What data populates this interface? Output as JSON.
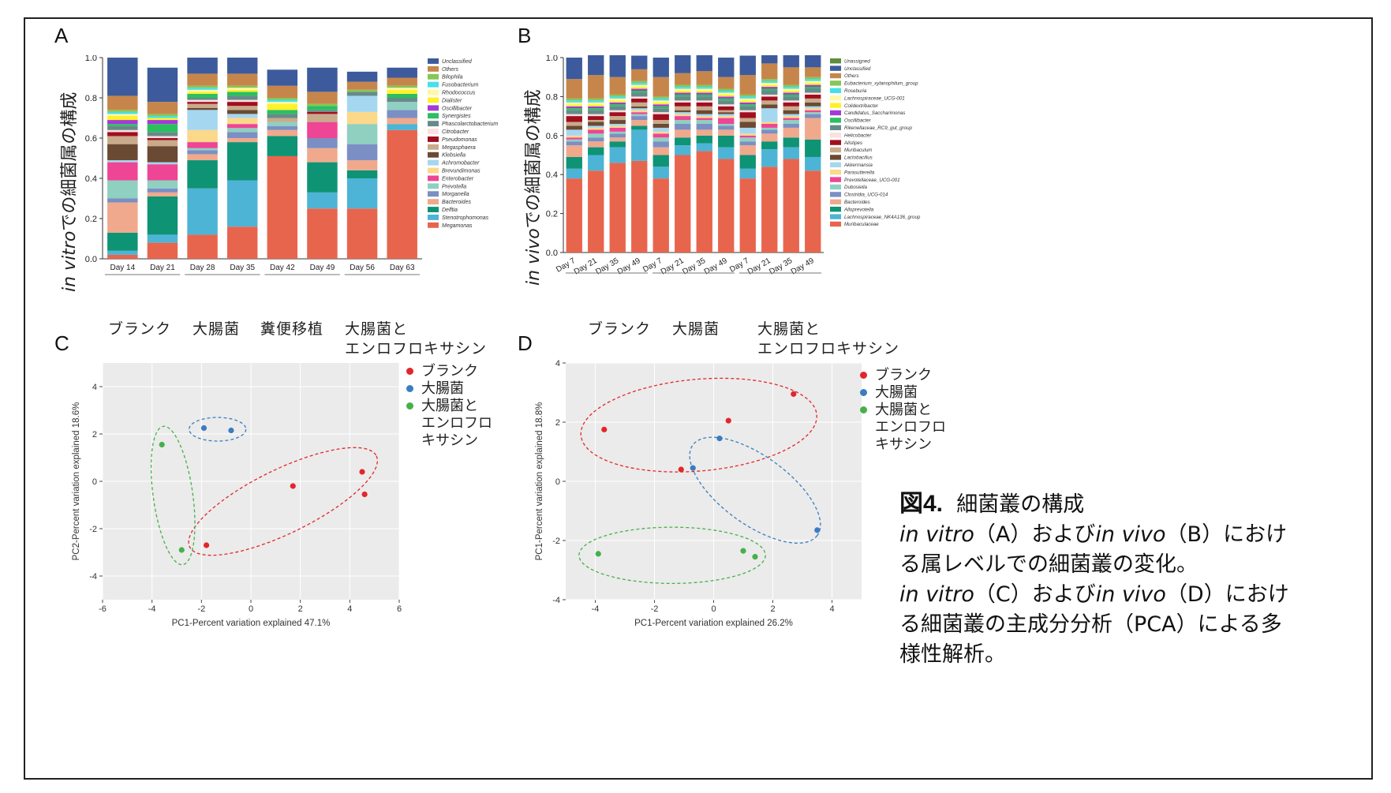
{
  "panelA": {
    "label": "A",
    "ylabel_italic": "in vitro",
    "ylabel_rest": "での細菌属の構成",
    "yticks": [
      "0.0",
      "0.2",
      "0.4",
      "0.6",
      "0.8",
      "1.0"
    ],
    "groups": [
      "ブランク",
      "大腸菌",
      "糞便移植",
      "大腸菌と",
      "エンロフロキサシン"
    ]
  },
  "panelB": {
    "label": "B",
    "ylabel_italic": "in vivo",
    "ylabel_rest": "での細菌属の構成",
    "yticks": [
      "0.0",
      "0.2",
      "0.4",
      "0.6",
      "0.8",
      "1.0"
    ],
    "groups": [
      "ブランク",
      "大腸菌",
      "大腸菌と",
      "エンロフロキサシン"
    ]
  },
  "panelC": {
    "label": "C",
    "legend": [
      "ブランク",
      "大腸菌",
      "大腸菌と",
      "エンロフロ",
      "キサシン"
    ]
  },
  "panelD": {
    "label": "D",
    "legend": [
      "ブランク",
      "大腸菌",
      "大腸菌と",
      "エンロフロ",
      "キサシン"
    ]
  },
  "caption": {
    "fig_num": "図4.",
    "title": "細菌叢の構成",
    "l1_it1": "in vitro",
    "l1_m1": "（A）および",
    "l1_it2": "in vivo",
    "l1_m2": "（B）におけ",
    "l2": "る属レベルでの細菌叢の変化。",
    "l3_it1": "in vitro",
    "l3_m1": "（C）および",
    "l3_it2": "in vivo",
    "l3_m2": "（D）におけ",
    "l4": "る細菌叢の主成分分析（PCA）による多",
    "l5": "様性解析。"
  },
  "colors": {
    "blank": "#e3262b",
    "ecoli": "#3a7dc1",
    "enro": "#46b04a",
    "panel_bg": "#ebebeb"
  },
  "chart_data": [
    {
      "type": "bar",
      "subtype": "stacked",
      "title": "A",
      "ylabel": "in vitroでの細菌属の構成",
      "ylim": [
        0,
        1.0
      ],
      "categories": [
        "Day 14",
        "Day 21",
        "Day 28",
        "Day 35",
        "Day 42",
        "Day 49",
        "Day 56",
        "Day 63"
      ],
      "series": [
        {
          "name": "Megamonas",
          "color": "#e8654d",
          "values": [
            0.02,
            0.08,
            0.12,
            0.16,
            0.51,
            0.25,
            0.25,
            0.64
          ]
        },
        {
          "name": "Stenotrophomonas",
          "color": "#4db4d6",
          "values": [
            0.02,
            0.04,
            0.23,
            0.23,
            0.0,
            0.08,
            0.15,
            0.03
          ]
        },
        {
          "name": "Delftia",
          "color": "#0f9375",
          "values": [
            0.09,
            0.19,
            0.14,
            0.19,
            0.1,
            0.15,
            0.04,
            0.0
          ]
        },
        {
          "name": "Bacteroides",
          "color": "#f0a98c",
          "values": [
            0.15,
            0.02,
            0.03,
            0.02,
            0.03,
            0.07,
            0.05,
            0.03
          ]
        },
        {
          "name": "Morganella",
          "color": "#7b8fc4",
          "values": [
            0.02,
            0.02,
            0.02,
            0.03,
            0.02,
            0.05,
            0.08,
            0.04
          ]
        },
        {
          "name": "Prevotella",
          "color": "#8fd0c0",
          "values": [
            0.09,
            0.04,
            0.01,
            0.02,
            0.02,
            0.0,
            0.1,
            0.04
          ]
        },
        {
          "name": "Enterobacter",
          "color": "#ee4594",
          "values": [
            0.09,
            0.08,
            0.03,
            0.02,
            0.0,
            0.08,
            0.0,
            0.0
          ]
        },
        {
          "name": "Brevundimonas",
          "color": "#fbd88a",
          "values": [
            0.0,
            0.0,
            0.06,
            0.03,
            0.0,
            0.0,
            0.06,
            0.0
          ]
        },
        {
          "name": "Achromobacter",
          "color": "#a5d7f0",
          "values": [
            0.01,
            0.01,
            0.1,
            0.02,
            0.0,
            0.0,
            0.08,
            0.0
          ]
        },
        {
          "name": "Klebsiella",
          "color": "#6b4a33",
          "values": [
            0.08,
            0.08,
            0.01,
            0.02,
            0.0,
            0.0,
            0.0,
            0.0
          ]
        },
        {
          "name": "Megasphaera",
          "color": "#c9ab8b",
          "values": [
            0.04,
            0.03,
            0.02,
            0.02,
            0.02,
            0.04,
            0.0,
            0.0
          ]
        },
        {
          "name": "Pseudomonas",
          "color": "#a00f1f",
          "values": [
            0.02,
            0.01,
            0.01,
            0.02,
            0.0,
            0.01,
            0.0,
            0.0
          ]
        },
        {
          "name": "Citrobacter",
          "color": "#fbe0e0",
          "values": [
            0.01,
            0.01,
            0.01,
            0.01,
            0.0,
            0.0,
            0.0,
            0.0
          ]
        },
        {
          "name": "Phascolarctobacterium",
          "color": "#668a8a",
          "values": [
            0.02,
            0.02,
            0.01,
            0.02,
            0.02,
            0.01,
            0.02,
            0.02
          ]
        },
        {
          "name": "Synergistes",
          "color": "#2bbf60",
          "values": [
            0.01,
            0.04,
            0.02,
            0.02,
            0.02,
            0.02,
            0.0,
            0.02
          ]
        },
        {
          "name": "Oscillibacter",
          "color": "#a43bd6",
          "values": [
            0.02,
            0.02,
            0.0,
            0.0,
            0.0,
            0.0,
            0.0,
            0.0
          ]
        },
        {
          "name": "Dialister",
          "color": "#fff12b",
          "values": [
            0.02,
            0.01,
            0.01,
            0.01,
            0.03,
            0.0,
            0.0,
            0.02
          ]
        },
        {
          "name": "Rhodococcus",
          "color": "#fff8a6",
          "values": [
            0.01,
            0.0,
            0.01,
            0.01,
            0.01,
            0.0,
            0.0,
            0.01
          ]
        },
        {
          "name": "Fusobacterium",
          "color": "#47e0e8",
          "values": [
            0.01,
            0.01,
            0.01,
            0.0,
            0.01,
            0.0,
            0.0,
            0.0
          ]
        },
        {
          "name": "Bilophila",
          "color": "#86c655",
          "values": [
            0.01,
            0.01,
            0.01,
            0.01,
            0.01,
            0.01,
            0.01,
            0.01
          ]
        },
        {
          "name": "Others",
          "color": "#c6864b",
          "values": [
            0.07,
            0.06,
            0.06,
            0.06,
            0.06,
            0.06,
            0.04,
            0.04
          ]
        },
        {
          "name": "Unclassified",
          "color": "#3d5b9c",
          "values": [
            0.19,
            0.17,
            0.08,
            0.08,
            0.08,
            0.12,
            0.05,
            0.05
          ]
        }
      ]
    },
    {
      "type": "bar",
      "subtype": "stacked",
      "title": "B",
      "ylabel": "in vivoでの細菌属の構成",
      "ylim": [
        0,
        1.0
      ],
      "categories": [
        "Day 7",
        "Day 21",
        "Day 35",
        "Day 49",
        "Day 7",
        "Day 21",
        "Day 35",
        "Day 49",
        "Day 7",
        "Day 21",
        "Day 35",
        "Day 49"
      ],
      "series": [
        {
          "name": "Muribaculaceae",
          "color": "#e8654d",
          "values": [
            0.38,
            0.42,
            0.46,
            0.47,
            0.38,
            0.5,
            0.52,
            0.48,
            0.38,
            0.44,
            0.48,
            0.42
          ]
        },
        {
          "name": "Lachnospiraceae_NK4A136_group",
          "color": "#4db4d6",
          "values": [
            0.05,
            0.08,
            0.08,
            0.16,
            0.06,
            0.05,
            0.04,
            0.06,
            0.05,
            0.09,
            0.06,
            0.07
          ]
        },
        {
          "name": "Alloprevotella",
          "color": "#0f9375",
          "values": [
            0.06,
            0.04,
            0.03,
            0.02,
            0.06,
            0.04,
            0.04,
            0.06,
            0.07,
            0.04,
            0.05,
            0.09
          ]
        },
        {
          "name": "Bacteroides",
          "color": "#f0a98c",
          "values": [
            0.06,
            0.03,
            0.02,
            0.03,
            0.04,
            0.04,
            0.03,
            0.03,
            0.05,
            0.04,
            0.05,
            0.11
          ]
        },
        {
          "name": "Clostridia_UCG-014",
          "color": "#7b8fc4",
          "values": [
            0.02,
            0.02,
            0.02,
            0.02,
            0.03,
            0.03,
            0.03,
            0.02,
            0.02,
            0.02,
            0.02,
            0.02
          ]
        },
        {
          "name": "Dubosiella",
          "color": "#8fd0c0",
          "values": [
            0.01,
            0.02,
            0.01,
            0.01,
            0.02,
            0.02,
            0.02,
            0.01,
            0.02,
            0.01,
            0.02,
            0.01
          ]
        },
        {
          "name": "Prevotellaceae_UCG-001",
          "color": "#ee4594",
          "values": [
            0.01,
            0.02,
            0.02,
            0.01,
            0.02,
            0.02,
            0.01,
            0.03,
            0.01,
            0.02,
            0.01,
            0.01
          ]
        },
        {
          "name": "Parasutterella",
          "color": "#fbd88a",
          "values": [
            0.01,
            0.01,
            0.01,
            0.01,
            0.01,
            0.01,
            0.01,
            0.01,
            0.01,
            0.01,
            0.01,
            0.01
          ]
        },
        {
          "name": "Akkermansia",
          "color": "#a5d7f0",
          "values": [
            0.03,
            0.01,
            0.01,
            0.01,
            0.02,
            0.01,
            0.01,
            0.01,
            0.03,
            0.07,
            0.01,
            0.01
          ]
        },
        {
          "name": "Lactobacillus",
          "color": "#6b4a33",
          "values": [
            0.02,
            0.02,
            0.02,
            0.01,
            0.02,
            0.01,
            0.02,
            0.01,
            0.03,
            0.02,
            0.02,
            0.02
          ]
        },
        {
          "name": "Muribaculum",
          "color": "#c9ab8b",
          "values": [
            0.02,
            0.01,
            0.02,
            0.02,
            0.02,
            0.02,
            0.02,
            0.01,
            0.02,
            0.02,
            0.02,
            0.02
          ]
        },
        {
          "name": "Alistipes",
          "color": "#a00f1f",
          "values": [
            0.03,
            0.02,
            0.02,
            0.02,
            0.03,
            0.02,
            0.02,
            0.02,
            0.03,
            0.02,
            0.02,
            0.02
          ]
        },
        {
          "name": "Helicobacter",
          "color": "#fbe0e0",
          "values": [
            0.01,
            0.01,
            0.01,
            0.01,
            0.01,
            0.01,
            0.01,
            0.01,
            0.01,
            0.01,
            0.01,
            0.01
          ]
        },
        {
          "name": "Rikenellaceae_RC9_gut_group",
          "color": "#668a8a",
          "values": [
            0.02,
            0.02,
            0.02,
            0.02,
            0.02,
            0.02,
            0.02,
            0.02,
            0.02,
            0.02,
            0.02,
            0.02
          ]
        },
        {
          "name": "Oscillibacter",
          "color": "#2bbf60",
          "values": [
            0.01,
            0.01,
            0.01,
            0.01,
            0.01,
            0.01,
            0.01,
            0.01,
            0.01,
            0.01,
            0.01,
            0.01
          ]
        },
        {
          "name": "Candidatus_Saccharimonas",
          "color": "#a43bd6",
          "values": [
            0.01,
            0.01,
            0.01,
            0.01,
            0.01,
            0.01,
            0.01,
            0.01,
            0.01,
            0.01,
            0.01,
            0.01
          ]
        },
        {
          "name": "Colidextribacter",
          "color": "#fff12b",
          "values": [
            0.01,
            0.01,
            0.01,
            0.01,
            0.01,
            0.01,
            0.01,
            0.01,
            0.01,
            0.01,
            0.01,
            0.01
          ]
        },
        {
          "name": "Lachnospiraceae_UCG-001",
          "color": "#fff8a6",
          "values": [
            0.01,
            0.01,
            0.01,
            0.01,
            0.01,
            0.01,
            0.01,
            0.01,
            0.01,
            0.01,
            0.01,
            0.01
          ]
        },
        {
          "name": "Roseburia",
          "color": "#47e0e8",
          "values": [
            0.01,
            0.01,
            0.01,
            0.01,
            0.01,
            0.01,
            0.01,
            0.01,
            0.01,
            0.01,
            0.01,
            0.01
          ]
        },
        {
          "name": "Eubacterium_xylanophilum_group",
          "color": "#86c655",
          "values": [
            0.01,
            0.01,
            0.01,
            0.01,
            0.01,
            0.01,
            0.01,
            0.01,
            0.01,
            0.01,
            0.01,
            0.01
          ]
        },
        {
          "name": "Others",
          "color": "#c6864b",
          "values": [
            0.1,
            0.12,
            0.09,
            0.06,
            0.1,
            0.06,
            0.07,
            0.06,
            0.1,
            0.08,
            0.09,
            0.05
          ]
        },
        {
          "name": "Unclassified",
          "color": "#3d5b9c",
          "values": [
            0.11,
            0.12,
            0.12,
            0.07,
            0.1,
            0.13,
            0.1,
            0.1,
            0.1,
            0.1,
            0.1,
            0.08
          ]
        },
        {
          "name": "Unassigned",
          "color": "#5c8e3d",
          "values": [
            0.0,
            0.0,
            0.0,
            0.0,
            0.0,
            0.0,
            0.0,
            0.0,
            0.0,
            0.0,
            0.0,
            0.0
          ]
        }
      ]
    },
    {
      "type": "scatter",
      "title": "C",
      "xlabel": "PC1-Percent variation explained 47.1%",
      "ylabel": "PC2-Percent variation explained 18.6%",
      "xlim": [
        -6,
        6
      ],
      "ylim": [
        -5,
        5
      ],
      "xticks": [
        -6,
        -4,
        -2,
        0,
        2,
        4,
        6
      ],
      "yticks": [
        -4,
        -2,
        0,
        2,
        4
      ],
      "series": [
        {
          "name": "ブランク",
          "color": "#e3262b",
          "x": [
            1.7,
            4.5,
            4.6,
            -1.8
          ],
          "y": [
            -0.2,
            0.4,
            -0.55,
            -2.7
          ]
        },
        {
          "name": "大腸菌",
          "color": "#3a7dc1",
          "x": [
            -1.9,
            -0.8
          ],
          "y": [
            2.25,
            2.15
          ]
        },
        {
          "name": "大腸菌とエンロフロキサシン",
          "color": "#46b04a",
          "x": [
            -3.6,
            -2.8
          ],
          "y": [
            1.55,
            -2.9
          ]
        }
      ]
    },
    {
      "type": "scatter",
      "title": "D",
      "xlabel": "PC1-Percent variation explained 26.2%",
      "ylabel": "PC1-Percent variation explained 18.8%",
      "xlim": [
        -5,
        5
      ],
      "ylim": [
        -4,
        4
      ],
      "xticks": [
        -4,
        -2,
        0,
        2,
        4
      ],
      "yticks": [
        -4,
        -2,
        0,
        2,
        4
      ],
      "series": [
        {
          "name": "ブランク",
          "color": "#e3262b",
          "x": [
            -3.7,
            0.5,
            2.7,
            -1.1
          ],
          "y": [
            1.75,
            2.05,
            2.95,
            0.4
          ]
        },
        {
          "name": "大腸菌",
          "color": "#3a7dc1",
          "x": [
            0.2,
            -0.7,
            3.5
          ],
          "y": [
            1.45,
            0.45,
            -1.65
          ]
        },
        {
          "name": "大腸菌とエンロフロキサシン",
          "color": "#46b04a",
          "x": [
            -3.9,
            1.0,
            1.4
          ],
          "y": [
            -2.45,
            -2.35,
            -2.55
          ]
        }
      ]
    }
  ]
}
